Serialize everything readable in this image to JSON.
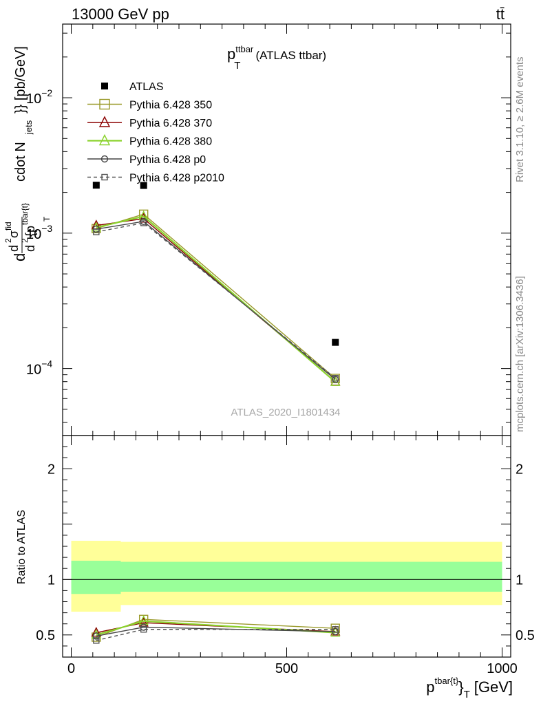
{
  "header": {
    "collision": "13000 GeV pp",
    "process": "tt̄"
  },
  "side_labels": {
    "rivet": "Rivet 3.1.10, ≥ 2.6M events",
    "mcplots": "mcplots.cern.ch [arXiv:1306.3436]"
  },
  "chart_data": [
    {
      "type": "scatter",
      "title_main": "p",
      "title_sup": "ttbar",
      "title_sub": "T",
      "title_rest": "(ATLAS ttbar)",
      "ylabel": {
        "d": "d",
        "num": "d",
        "num_sup": "2",
        "sigma": "σ",
        "sigma_sup": "fid",
        "den": "d",
        "den_sup": "2",
        "brace_p": "{p",
        "p_sup": "tbar{t}",
        "p_sub": "T",
        "rest": "cdot N",
        "rest_sub": "jets",
        "rest2": "}} [pb/GeV]"
      },
      "yscale": "log",
      "ylim": [
        3.2e-05,
        0.035
      ],
      "xlim": [
        -20,
        1020
      ],
      "y_ticks": [
        {
          "value": 0.0001,
          "base": "10",
          "exp": "−4"
        },
        {
          "value": 0.001,
          "base": "10",
          "exp": "−3"
        },
        {
          "value": 0.01,
          "base": "10",
          "exp": "−2"
        }
      ],
      "watermark": "ATLAS_2020_I1801434",
      "legend_position": "top-left",
      "series": [
        {
          "name": "ATLAS",
          "color": "#000000",
          "marker": "filled-square",
          "dash": "none",
          "x": [
            58,
            168,
            613
          ],
          "y": [
            0.00226,
            0.00225,
            0.000156
          ]
        },
        {
          "name": "Pythia 6.428 350",
          "color": "#9a9a2a",
          "marker": "open-square",
          "dash": "solid",
          "x": [
            58,
            168,
            613
          ],
          "y": [
            0.00108,
            0.00138,
            8.45e-05
          ]
        },
        {
          "name": "Pythia 6.428 370",
          "color": "#8b0000",
          "marker": "open-triangle",
          "dash": "solid",
          "x": [
            58,
            168,
            613
          ],
          "y": [
            0.00114,
            0.00128,
            8e-05
          ]
        },
        {
          "name": "Pythia 6.428 380",
          "color": "#8ad22b",
          "marker": "open-triangle",
          "dash": "solid",
          "x": [
            58,
            168,
            613
          ],
          "y": [
            0.0011,
            0.00133,
            7.95e-05
          ]
        },
        {
          "name": "Pythia 6.428 p0",
          "color": "#444444",
          "marker": "open-circle",
          "dash": "solid",
          "x": [
            58,
            168,
            613
          ],
          "y": [
            0.00107,
            0.00122,
            8.3e-05
          ]
        },
        {
          "name": "Pythia 6.428 p2010",
          "color": "#555555",
          "marker": "open-square-small",
          "dash": "dashed",
          "x": [
            58,
            168,
            613
          ],
          "y": [
            0.00102,
            0.00119,
            8.48e-05
          ]
        }
      ]
    },
    {
      "type": "scatter",
      "ylabel": "Ratio to ATLAS",
      "ylim": [
        0.3,
        2.3
      ],
      "xlim": [
        -20,
        1020
      ],
      "y_ticks": [
        {
          "value": 0.5,
          "label": "0.5"
        },
        {
          "value": 1,
          "label": "1"
        },
        {
          "value": 2,
          "label": "2"
        }
      ],
      "x_ticks": [
        {
          "value": 0,
          "label": "0"
        },
        {
          "value": 500,
          "label": "500"
        },
        {
          "value": 1000,
          "label": "1000"
        }
      ],
      "xlabel": {
        "main": "p",
        "sup": "tbar{t}",
        "brace": "}",
        "sub": "T",
        "unit": "[GeV]"
      },
      "bands": [
        {
          "x0": 0,
          "x1": 115,
          "yellow": [
            0.71,
            1.35
          ],
          "green": [
            0.87,
            1.17
          ]
        },
        {
          "x0": 115,
          "x1": 1000,
          "yellow": [
            0.77,
            1.34
          ],
          "green": [
            0.89,
            1.16
          ]
        }
      ],
      "series": [
        {
          "name": "Pythia 6.428 350",
          "color": "#9a9a2a",
          "marker": "open-square",
          "dash": "solid",
          "x": [
            58,
            168,
            613
          ],
          "y": [
            0.48,
            0.64,
            0.56
          ]
        },
        {
          "name": "Pythia 6.428 370",
          "color": "#8b0000",
          "marker": "open-triangle",
          "dash": "solid",
          "x": [
            58,
            168,
            613
          ],
          "y": [
            0.52,
            0.61,
            0.53
          ]
        },
        {
          "name": "Pythia 6.428 380",
          "color": "#8ad22b",
          "marker": "open-triangle",
          "dash": "solid",
          "x": [
            58,
            168,
            613
          ],
          "y": [
            0.5,
            0.625,
            0.52
          ]
        },
        {
          "name": "Pythia 6.428 p0",
          "color": "#444444",
          "marker": "open-circle",
          "dash": "solid",
          "x": [
            58,
            168,
            613
          ],
          "y": [
            0.49,
            0.57,
            0.53
          ]
        },
        {
          "name": "Pythia 6.428 p2010",
          "color": "#555555",
          "marker": "open-square-small",
          "dash": "dashed",
          "x": [
            58,
            168,
            613
          ],
          "y": [
            0.45,
            0.55,
            0.55
          ]
        }
      ]
    }
  ]
}
